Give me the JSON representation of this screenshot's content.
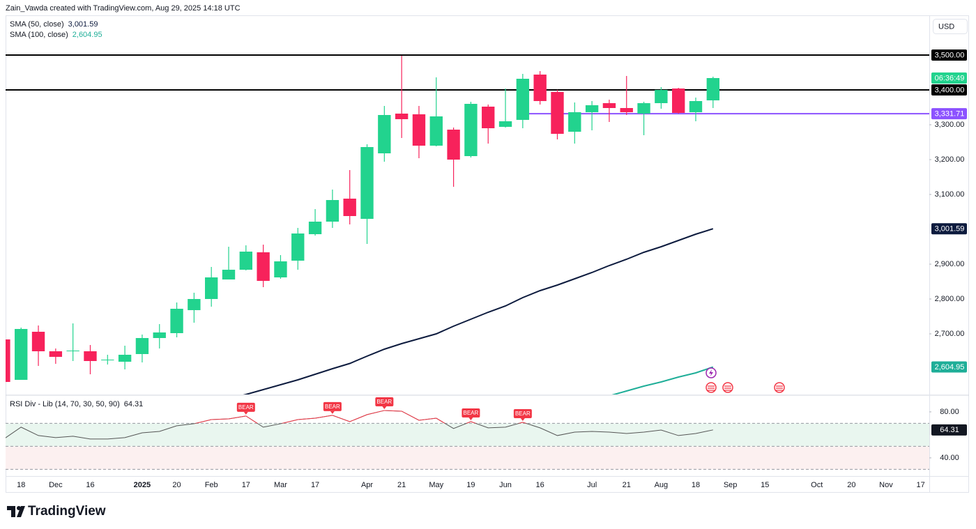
{
  "header": {
    "attribution": "Zain_Vawda created with TradingView.com, Aug 29, 2025 14:18 UTC",
    "currency": "USD"
  },
  "footer": {
    "brand": "TradingView"
  },
  "chart_data": [
    {
      "type": "candlestick",
      "categories": [
        null,
        "18",
        null,
        "Dec",
        null,
        "16",
        null,
        null,
        "2025",
        null,
        "20",
        null,
        "Feb",
        null,
        "17",
        null,
        "Mar",
        null,
        "17",
        null,
        null,
        "Apr",
        null,
        "21",
        null,
        "May",
        null,
        "19",
        null,
        "Jun",
        null,
        "16",
        null,
        null,
        "Jul",
        null,
        "21",
        null,
        "Aug",
        null,
        "18",
        null,
        "Sep",
        null,
        "15",
        null,
        null,
        "Oct",
        null,
        "20",
        null,
        "Nov",
        null,
        "17"
      ],
      "open": [
        2684,
        2568,
        2706,
        2650,
        2650,
        2650,
        2624,
        2620,
        2642,
        2688,
        2702,
        2768,
        2800,
        2856,
        2884,
        2934,
        2862,
        2910,
        2986,
        3022,
        3088,
        3030,
        3218,
        3332,
        3330,
        3240,
        3286,
        3210,
        3352,
        3294,
        3314,
        3444,
        3394,
        3280,
        3336,
        3362,
        3348,
        3332,
        3362,
        3404,
        3336,
        3370,
        null,
        null,
        null,
        null,
        null,
        null,
        null,
        null,
        null,
        null,
        null,
        null
      ],
      "high": [
        2684,
        2718,
        2724,
        2658,
        2730,
        2668,
        2640,
        2666,
        2698,
        2728,
        2790,
        2818,
        2892,
        2950,
        2954,
        2956,
        2926,
        3004,
        3058,
        3114,
        3170,
        3244,
        3354,
        3498,
        3354,
        3436,
        3292,
        3366,
        3358,
        3404,
        3446,
        3454,
        3400,
        3364,
        3368,
        3372,
        3440,
        3366,
        3408,
        3406,
        3378,
        3438,
        null,
        null,
        null,
        null,
        null,
        null,
        null,
        null,
        null,
        null,
        null,
        null
      ],
      "low": [
        2562,
        2568,
        2608,
        2614,
        2622,
        2584,
        2612,
        2598,
        2618,
        2658,
        2690,
        2732,
        2778,
        2856,
        2882,
        2834,
        2858,
        2884,
        2982,
        3004,
        3014,
        2958,
        3194,
        3262,
        3204,
        3238,
        3122,
        3206,
        3246,
        3292,
        3290,
        3358,
        3258,
        3246,
        3284,
        3308,
        3328,
        3270,
        3346,
        3332,
        3310,
        3348,
        null,
        null,
        null,
        null,
        null,
        null,
        null,
        null,
        null,
        null,
        null,
        null
      ],
      "close": [
        2562,
        2714,
        2650,
        2634,
        2652,
        2622,
        2626,
        2640,
        2688,
        2704,
        2772,
        2800,
        2862,
        2884,
        2936,
        2852,
        2908,
        2988,
        3022,
        3084,
        3038,
        3236,
        3328,
        3316,
        3240,
        3324,
        3200,
        3360,
        3290,
        3310,
        3432,
        3368,
        3274,
        3336,
        3356,
        3348,
        3336,
        3362,
        3400,
        3334,
        3368,
        3434,
        null,
        null,
        null,
        null,
        null,
        null,
        null,
        null,
        null,
        null,
        null,
        null
      ],
      "up_color": "#22d38e",
      "down_color": "#f7225b",
      "countdown": "06:36:49",
      "ylim": [
        2526,
        3614
      ],
      "yticks": [
        {
          "value": 2700,
          "label": "2,700.00"
        },
        {
          "value": 2800,
          "label": "2,800.00"
        },
        {
          "value": 2900,
          "label": "2,900.00"
        },
        {
          "value": 3100,
          "label": "3,100.00"
        },
        {
          "value": 3200,
          "label": "3,200.00"
        },
        {
          "value": 3300,
          "label": "3,300.00"
        }
      ],
      "grid": false,
      "hlines": [
        {
          "value": 3500,
          "label": "3,500.00",
          "color": "#000000",
          "extend": "both"
        },
        {
          "value": 3400,
          "label": "3,400.00",
          "color": "#000000",
          "extend": "both"
        },
        {
          "value": 3331.71,
          "label": "3,331.71",
          "color": "#8c52ff",
          "extend": "right"
        }
      ],
      "series": [
        {
          "name": "SMA (50, close)",
          "color": "#0d1b3e",
          "values": [
            null,
            null,
            null,
            null,
            null,
            null,
            null,
            null,
            null,
            null,
            null,
            null,
            null,
            2514,
            2526,
            2540,
            2554,
            2568,
            2584,
            2600,
            2615,
            2636,
            2656,
            2672,
            2686,
            2700,
            2722,
            2742,
            2762,
            2780,
            2804,
            2824,
            2840,
            2858,
            2876,
            2896,
            2914,
            2934,
            2950,
            2968,
            2986,
            3001.59,
            null,
            null,
            null,
            null,
            null,
            null,
            null,
            null,
            null,
            null,
            null,
            null
          ],
          "value_labels": [
            null,
            null,
            null,
            null,
            null,
            null,
            null,
            null,
            null,
            null,
            null,
            null,
            null,
            null,
            null,
            null,
            null,
            null,
            null,
            null,
            null,
            null,
            null,
            null,
            null,
            null,
            null,
            null,
            null,
            null,
            null,
            null,
            null,
            null,
            null,
            null,
            null,
            null,
            null,
            null,
            null,
            "3,001.59",
            null,
            null,
            null,
            null,
            null,
            null,
            null,
            null,
            null,
            null,
            null,
            null
          ]
        },
        {
          "name": "SMA (100, close)",
          "color": "#1fae98",
          "values": [
            null,
            null,
            null,
            null,
            null,
            null,
            null,
            null,
            null,
            null,
            null,
            null,
            null,
            null,
            null,
            null,
            null,
            null,
            null,
            null,
            null,
            null,
            null,
            null,
            null,
            null,
            null,
            null,
            null,
            null,
            null,
            null,
            null,
            null,
            null,
            2522,
            2536,
            2550,
            2562,
            2576,
            2588,
            2604.95,
            null,
            null,
            null,
            null,
            null,
            null,
            null,
            null,
            null,
            null,
            null,
            null
          ],
          "value_labels": [
            null,
            null,
            null,
            null,
            null,
            null,
            null,
            null,
            null,
            null,
            null,
            null,
            null,
            null,
            null,
            null,
            null,
            null,
            null,
            null,
            null,
            null,
            null,
            null,
            null,
            null,
            null,
            null,
            null,
            null,
            null,
            null,
            null,
            null,
            null,
            null,
            null,
            null,
            null,
            null,
            null,
            "2,604.95",
            null,
            null,
            null,
            null,
            null,
            null,
            null,
            null,
            null,
            null,
            null,
            null
          ]
        }
      ]
    },
    {
      "type": "line",
      "title": "RSI Div - Lib (14, 70, 30, 50, 90)",
      "series": [
        {
          "color": "#555555",
          "overbought_color": "#f23645",
          "values": [
            56.4,
            66.7,
            59.4,
            57.6,
            58.8,
            56.4,
            56.4,
            57.6,
            61.8,
            63,
            67.9,
            69.7,
            73.3,
            73.9,
            76.4,
            66.7,
            69.7,
            73.3,
            74.5,
            77,
            71.5,
            77.6,
            81.2,
            80.6,
            72.7,
            74.5,
            65.5,
            71.5,
            66.1,
            66.7,
            70.9,
            66.1,
            59.4,
            62.4,
            63,
            62.4,
            61.2,
            62.4,
            64.2,
            59.4,
            61.2,
            64.31,
            null,
            null,
            null,
            null,
            null,
            null,
            null,
            null,
            null,
            null,
            null,
            null
          ]
        }
      ],
      "signals": [
        null,
        null,
        null,
        null,
        null,
        null,
        null,
        null,
        null,
        null,
        null,
        null,
        null,
        null,
        "BEAR",
        null,
        null,
        null,
        null,
        "BEAR",
        null,
        null,
        "BEAR",
        null,
        null,
        null,
        null,
        "BEAR",
        null,
        null,
        "BEAR",
        null,
        null,
        null,
        null,
        null,
        null,
        null,
        null,
        null,
        null,
        null,
        null,
        null,
        null,
        null,
        null,
        null,
        null,
        null,
        null,
        null,
        null,
        null
      ],
      "signal_color": "#f23645",
      "levels": [
        70,
        50,
        30
      ],
      "band_colors": [
        "#e9f6ef",
        "#fcf0f0"
      ],
      "ylim": [
        24.2,
        93.9
      ],
      "yticks": [
        {
          "value": 80,
          "label": "80.00"
        },
        {
          "value": 40,
          "label": "40.00"
        }
      ]
    }
  ]
}
